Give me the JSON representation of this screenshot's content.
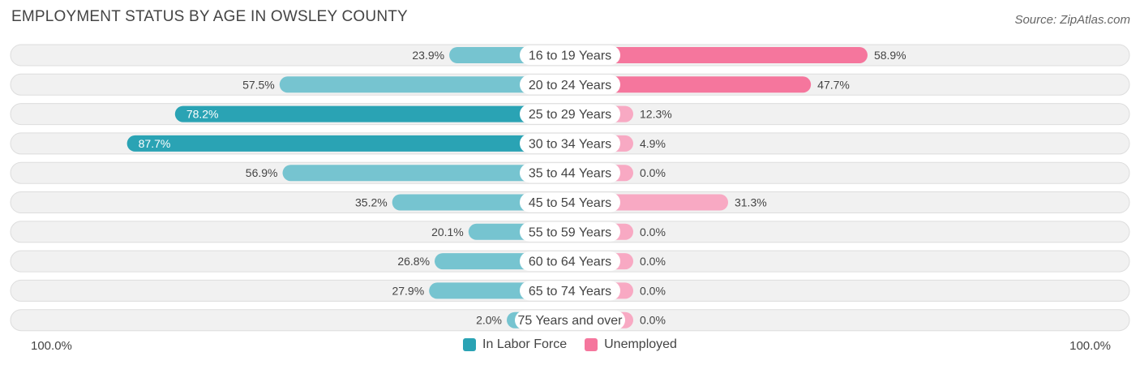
{
  "title": "EMPLOYMENT STATUS BY AGE IN OWSLEY COUNTY",
  "source": "Source: ZipAtlas.com",
  "colors": {
    "labor_dark": "#2aa3b4",
    "labor_light": "#76c4d0",
    "unemp_dark": "#f5769d",
    "unemp_light": "#f8a9c3",
    "row_bg": "#f1f1f1",
    "row_border": "#dddddd"
  },
  "chart_data": {
    "type": "bar",
    "orientation": "horizontal-diverging",
    "title": "EMPLOYMENT STATUS BY AGE IN OWSLEY COUNTY",
    "categories": [
      "16 to 19 Years",
      "20 to 24 Years",
      "25 to 29 Years",
      "30 to 34 Years",
      "35 to 44 Years",
      "45 to 54 Years",
      "55 to 59 Years",
      "60 to 64 Years",
      "65 to 74 Years",
      "75 Years and over"
    ],
    "series": [
      {
        "name": "In Labor Force",
        "values": [
          23.9,
          57.5,
          78.2,
          87.7,
          56.9,
          35.2,
          20.1,
          26.8,
          27.9,
          2.0
        ],
        "labels": [
          "23.9%",
          "57.5%",
          "78.2%",
          "87.7%",
          "56.9%",
          "35.2%",
          "20.1%",
          "26.8%",
          "27.9%",
          "2.0%"
        ]
      },
      {
        "name": "Unemployed",
        "values": [
          58.9,
          47.7,
          12.3,
          4.9,
          0.0,
          31.3,
          0.0,
          0.0,
          0.0,
          0.0
        ],
        "labels": [
          "58.9%",
          "47.7%",
          "12.3%",
          "4.9%",
          "0.0%",
          "31.3%",
          "0.0%",
          "0.0%",
          "0.0%",
          "0.0%"
        ]
      }
    ],
    "xlim": [
      -100,
      100
    ],
    "axis_left_label": "100.0%",
    "axis_right_label": "100.0%",
    "legend": [
      "In Labor Force",
      "Unemployed"
    ],
    "legend_position": "bottom-center"
  }
}
